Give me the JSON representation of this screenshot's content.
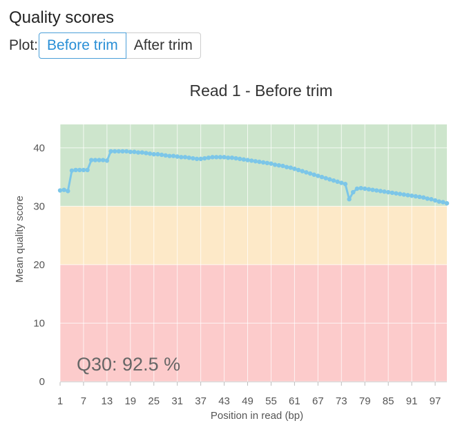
{
  "header": {
    "title": "Quality scores"
  },
  "plot_selector": {
    "label": "Plot:",
    "options": [
      "Before trim",
      "After trim"
    ],
    "selected": "Before trim"
  },
  "zone_colors": {
    "good": "#cde5cc",
    "warn": "#fde9c8",
    "bad": "#fccbcb"
  },
  "line_color": "#7cc6e8",
  "chart_data": {
    "type": "line",
    "title": "Read 1 - Before trim",
    "xlabel": "Position in read (bp)",
    "ylabel": "Mean quality score",
    "xlim": [
      1,
      100
    ],
    "ylim": [
      0,
      44
    ],
    "x_ticks": [
      1,
      7,
      13,
      19,
      25,
      31,
      37,
      43,
      49,
      55,
      61,
      67,
      73,
      79,
      85,
      91,
      97
    ],
    "y_ticks": [
      0,
      10,
      20,
      30,
      40
    ],
    "zones": [
      {
        "from": 0,
        "to": 20,
        "color": "#fccbcb"
      },
      {
        "from": 20,
        "to": 30,
        "color": "#fde9c8"
      },
      {
        "from": 30,
        "to": 44,
        "color": "#cde5cc"
      }
    ],
    "annotation": "Q30: 92.5 %",
    "series": [
      {
        "x": [
          1,
          2,
          3,
          4,
          5,
          6,
          7,
          8,
          9,
          10,
          11,
          12,
          13,
          14,
          15,
          16,
          17,
          18,
          19,
          20,
          21,
          22,
          23,
          24,
          25,
          26,
          27,
          28,
          29,
          30,
          31,
          32,
          33,
          34,
          35,
          36,
          37,
          38,
          39,
          40,
          41,
          42,
          43,
          44,
          45,
          46,
          47,
          48,
          49,
          50,
          51,
          52,
          53,
          54,
          55,
          56,
          57,
          58,
          59,
          60,
          61,
          62,
          63,
          64,
          65,
          66,
          67,
          68,
          69,
          70,
          71,
          72,
          73,
          74,
          75,
          76,
          77,
          78,
          79,
          80,
          81,
          82,
          83,
          84,
          85,
          86,
          87,
          88,
          89,
          90,
          91,
          92,
          93,
          94,
          95,
          96,
          97,
          98,
          99,
          100
        ],
        "values": [
          32.7,
          32.8,
          32.6,
          36.1,
          36.2,
          36.2,
          36.2,
          36.2,
          37.9,
          37.9,
          37.9,
          37.9,
          37.8,
          39.4,
          39.4,
          39.4,
          39.4,
          39.4,
          39.3,
          39.3,
          39.2,
          39.2,
          39.1,
          39.0,
          38.9,
          38.9,
          38.8,
          38.7,
          38.6,
          38.6,
          38.5,
          38.4,
          38.4,
          38.3,
          38.2,
          38.1,
          38.1,
          38.2,
          38.3,
          38.4,
          38.4,
          38.4,
          38.4,
          38.3,
          38.3,
          38.2,
          38.1,
          38.0,
          37.9,
          37.8,
          37.7,
          37.6,
          37.5,
          37.4,
          37.3,
          37.1,
          37.0,
          36.9,
          36.7,
          36.6,
          36.4,
          36.2,
          36.0,
          35.8,
          35.6,
          35.4,
          35.2,
          35.0,
          34.8,
          34.6,
          34.4,
          34.2,
          34.0,
          33.8,
          31.2,
          32.4,
          33.0,
          33.1,
          33.0,
          32.9,
          32.8,
          32.7,
          32.6,
          32.5,
          32.4,
          32.3,
          32.2,
          32.1,
          32.0,
          31.9,
          31.8,
          31.7,
          31.6,
          31.5,
          31.3,
          31.2,
          31.0,
          30.8,
          30.7,
          30.5
        ]
      }
    ]
  }
}
